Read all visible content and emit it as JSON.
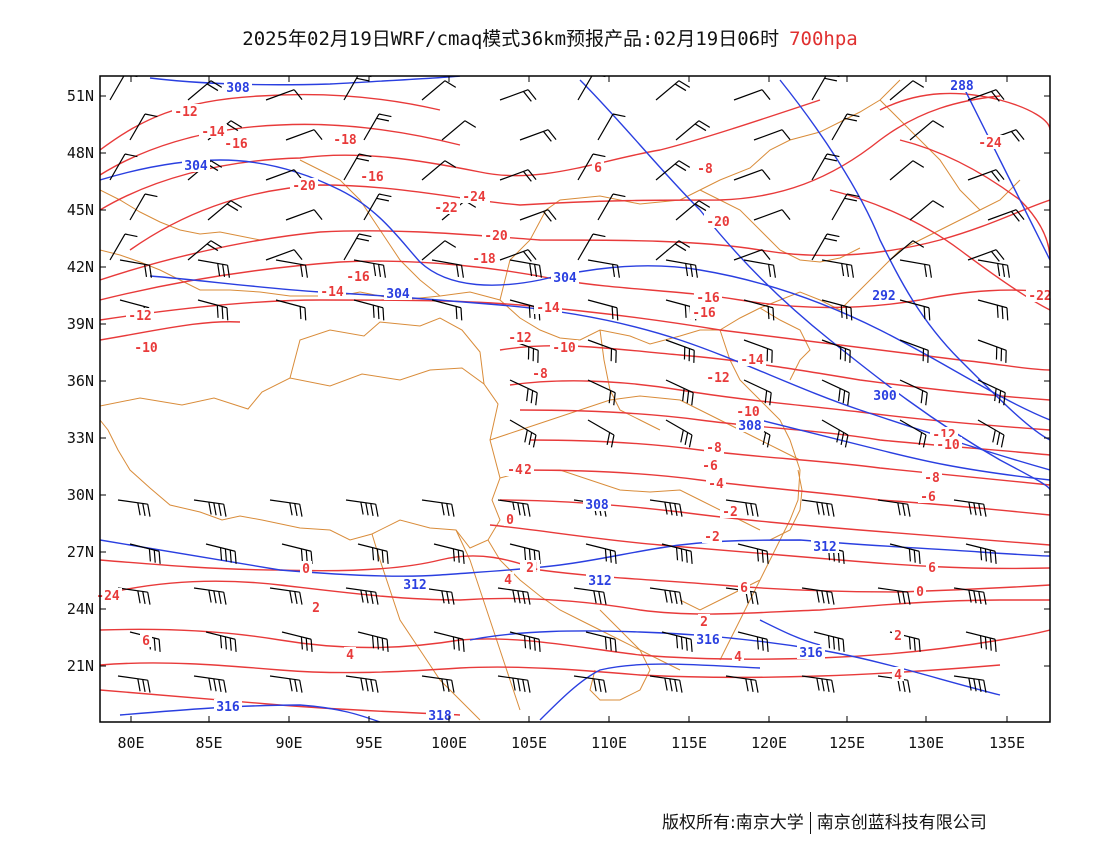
{
  "header": {
    "title": "2025年02月19日WRF/cmaq模式36km预报产品:02月19日06时",
    "level": "700hpa"
  },
  "colors": {
    "temperature": "#e83a3a",
    "height": "#2a3fe0",
    "border": "#d98c3a",
    "wind": "#000000"
  },
  "axes": {
    "lon_ticks": [
      "80E",
      "85E",
      "90E",
      "95E",
      "100E",
      "105E",
      "110E",
      "115E",
      "120E",
      "125E",
      "130E",
      "135E"
    ],
    "lat_ticks": [
      "51N",
      "48N",
      "45N",
      "42N",
      "39N",
      "36N",
      "33N",
      "30N",
      "27N",
      "24N",
      "21N"
    ],
    "lon_range": [
      78,
      138
    ],
    "lat_range": [
      18.2,
      52.1
    ]
  },
  "map": {
    "height_contour_labels": [
      "308",
      "304",
      "304",
      "304",
      "308",
      "312",
      "312",
      "312",
      "316",
      "316",
      "316",
      "318",
      "288",
      "292",
      "300",
      "308"
    ],
    "temperature_contour_labels": [
      "-12",
      "-14",
      "-16",
      "-18",
      "-20",
      "-16",
      "-20",
      "-22",
      "-20",
      "-18",
      "-16",
      "-14",
      "-12",
      "-10",
      "-8",
      "-14",
      "-12",
      "-10",
      "-8",
      "-16",
      "-16",
      "-14",
      "-12",
      "-10",
      "-8",
      "-6",
      "-4",
      "-2",
      "0",
      "-2",
      "-4",
      "-2",
      "0",
      "2",
      "4",
      "6",
      "2",
      "4",
      "6",
      "0",
      "2",
      "4",
      "6",
      "-20",
      "-24",
      "-22",
      "-24",
      "-24",
      "-12",
      "-10",
      "-8",
      "-6",
      "-4",
      "0",
      "2",
      "4",
      "6"
    ]
  },
  "footer": {
    "left": "版权所有:南京大学",
    "right": "南京创蓝科技有限公司"
  }
}
